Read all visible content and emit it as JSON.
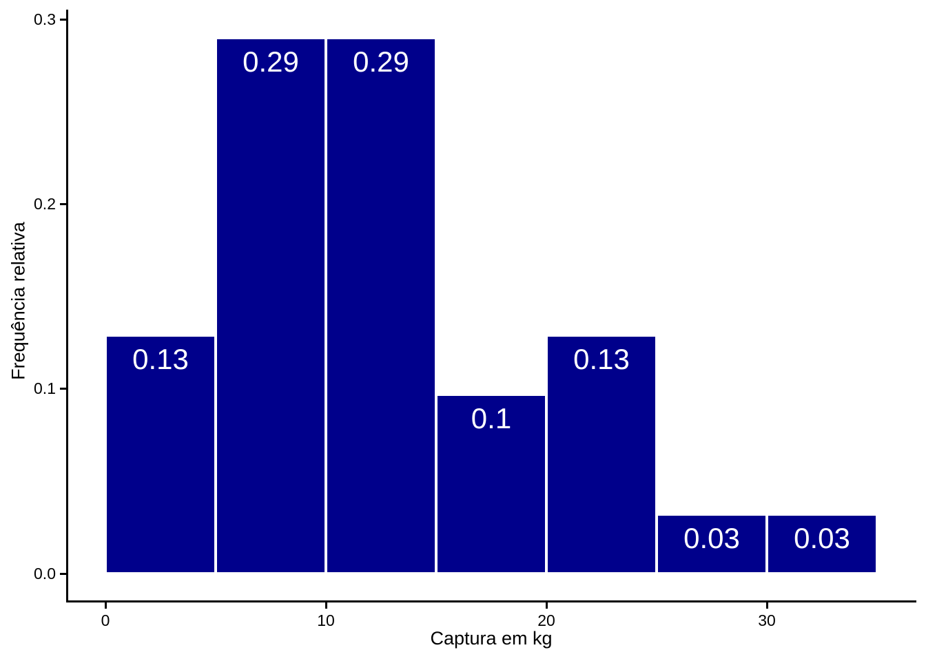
{
  "chart_data": {
    "type": "bar",
    "subtype": "histogram",
    "title": "",
    "xlabel": "Captura em kg",
    "ylabel": "Frequência relativa",
    "bins": [
      {
        "x_start": 0,
        "x_end": 5,
        "value": 0.129,
        "label": "0.13"
      },
      {
        "x_start": 5,
        "x_end": 10,
        "value": 0.29,
        "label": "0.29"
      },
      {
        "x_start": 10,
        "x_end": 15,
        "value": 0.29,
        "label": "0.29"
      },
      {
        "x_start": 15,
        "x_end": 20,
        "value": 0.097,
        "label": "0.1"
      },
      {
        "x_start": 20,
        "x_end": 25,
        "value": 0.129,
        "label": "0.13"
      },
      {
        "x_start": 25,
        "x_end": 30,
        "value": 0.032,
        "label": "0.03"
      },
      {
        "x_start": 30,
        "x_end": 35,
        "value": 0.032,
        "label": "0.03"
      }
    ],
    "x_ticks": [
      {
        "value": 0,
        "label": "0"
      },
      {
        "value": 10,
        "label": "10"
      },
      {
        "value": 20,
        "label": "20"
      },
      {
        "value": 30,
        "label": "30"
      }
    ],
    "y_ticks": [
      {
        "value": 0.0,
        "label": "0.0"
      },
      {
        "value": 0.1,
        "label": "0.1"
      },
      {
        "value": 0.2,
        "label": "0.2"
      },
      {
        "value": 0.3,
        "label": "0.3"
      }
    ],
    "xlim": [
      -1.75,
      36.75
    ],
    "ylim": [
      0,
      0.3
    ],
    "grid": false,
    "legend": false,
    "bar_color": "#00008B",
    "bar_border_color": "#FFFFFF",
    "bar_label_color": "#FFFFFF",
    "axis_color": "#000000",
    "text_color": "#000000",
    "background_color": "#FFFFFF"
  }
}
